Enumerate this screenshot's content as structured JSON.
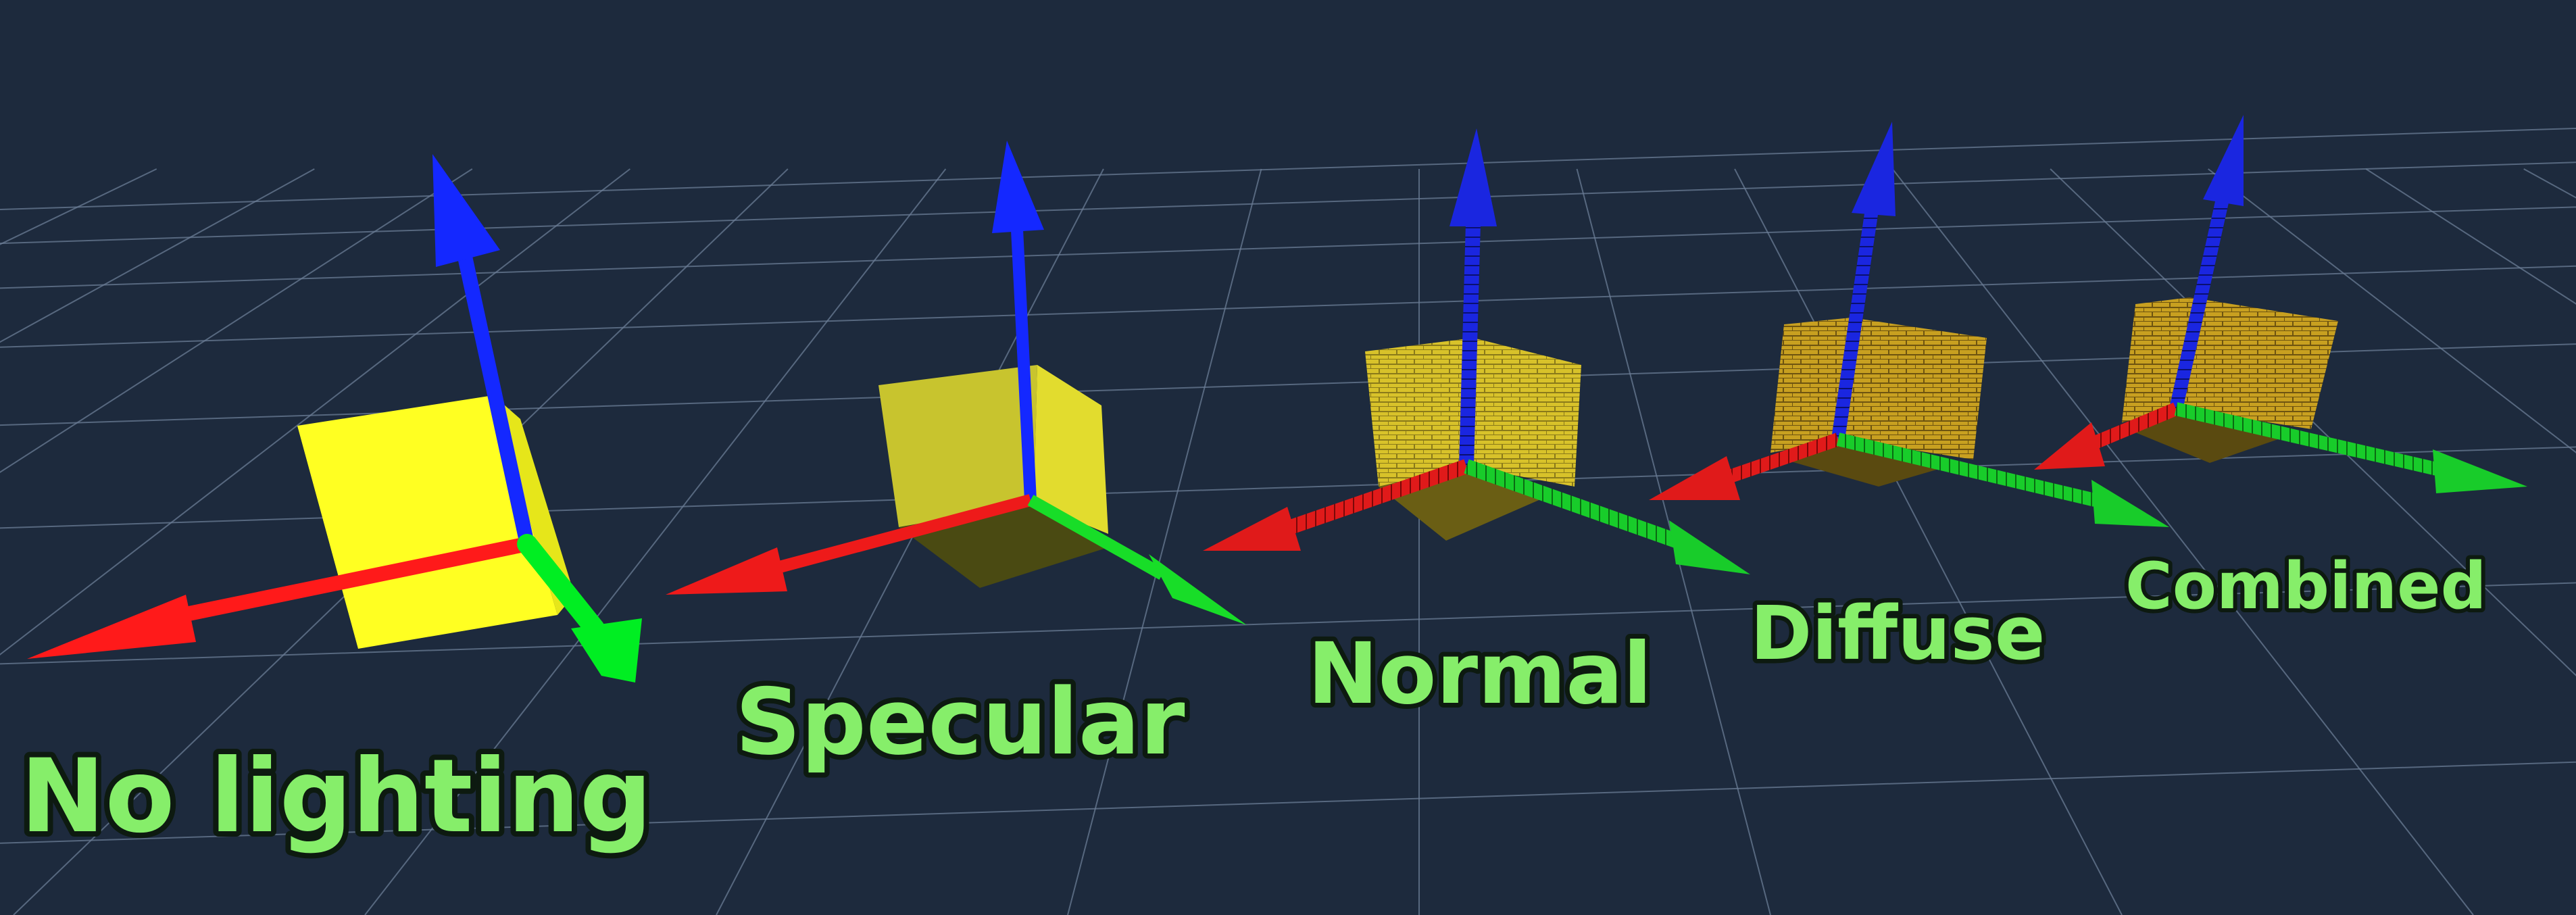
{
  "scene": {
    "background_color": "#1d2a3d",
    "grid_color": "#6b7d96",
    "axis_colors": {
      "x": "#ff1a1a",
      "y": "#00ee22",
      "z": "#1428ff"
    },
    "cube_color": "#f0ea2a",
    "caption_color": "#86ee6a"
  },
  "captions": {
    "no_lighting": "No lighting",
    "specular": "Specular",
    "normal": "Normal",
    "diffuse": "Diffuse",
    "combined": "Combined"
  }
}
